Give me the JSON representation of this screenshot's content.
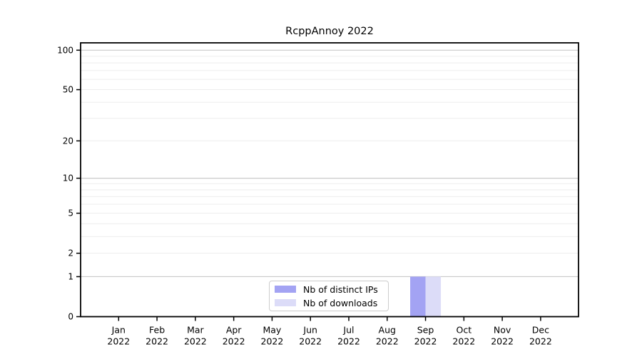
{
  "figure": {
    "background": "#ffffff",
    "text_color": "#000000"
  },
  "chart_data": {
    "type": "bar",
    "title": "RcppAnnoy 2022",
    "xlabel": "",
    "ylabel": "",
    "yscale": "log1p",
    "ylim": [
      0,
      113
    ],
    "y_ticks": [
      0,
      1,
      2,
      5,
      10,
      20,
      50,
      100
    ],
    "categories": [
      "Jan 2022",
      "Feb 2022",
      "Mar 2022",
      "Apr 2022",
      "May 2022",
      "Jun 2022",
      "Jul 2022",
      "Aug 2022",
      "Sep 2022",
      "Oct 2022",
      "Nov 2022",
      "Dec 2022"
    ],
    "series": [
      {
        "name": "Nb of distinct IPs",
        "color": "#a3a3f3",
        "values": [
          0,
          0,
          0,
          0,
          0,
          0,
          0,
          0,
          1,
          0,
          0,
          0
        ]
      },
      {
        "name": "Nb of downloads",
        "color": "#dcdcf8",
        "values": [
          0,
          0,
          0,
          0,
          0,
          0,
          0,
          0,
          1,
          0,
          0,
          0
        ]
      }
    ],
    "grid": {
      "major_values": [
        1,
        10,
        100
      ],
      "minor_values": [
        2,
        3,
        4,
        5,
        6,
        7,
        8,
        9,
        20,
        30,
        40,
        50,
        60,
        70,
        80,
        90
      ],
      "major_color": "#c9c9c9",
      "minor_color": "#ededed"
    },
    "legend": {
      "position": "lower center inside",
      "entries": [
        "Nb of distinct IPs",
        "Nb of downloads"
      ]
    }
  }
}
